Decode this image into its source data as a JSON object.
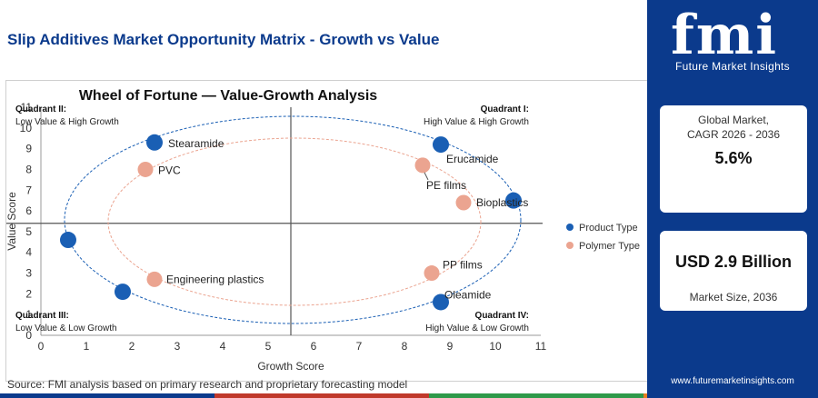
{
  "header": {
    "title": "Slip Additives Market Opportunity Matrix - Growth vs Value"
  },
  "source_note": "Source: FMI analysis based on primary research and proprietary forecasting model",
  "colors": {
    "navy": "#0b3a8c",
    "product": "#1a5fb4",
    "polymer": "#eba490",
    "bar": [
      "#0b3a8c",
      "#c0392b",
      "#2e9a4a",
      "#e67e22"
    ]
  },
  "sidebar": {
    "logo_mark": "fmi",
    "logo_text": "Future Market Insights",
    "cagr_label_line1": "Global Market,",
    "cagr_label_line2": "CAGR 2026 - 2036",
    "cagr_value": "5.6%",
    "size_value": "USD 2.9 Billion",
    "size_label": "Market Size, 2036",
    "website": "www.futuremarketinsights.com"
  },
  "chart_data": {
    "type": "scatter",
    "title": "Wheel of Fortune — Value-Growth Analysis",
    "xlabel": "Growth Score",
    "ylabel": "Value Score",
    "xlim": [
      0,
      11
    ],
    "ylim": [
      0,
      11
    ],
    "xticks": [
      "0",
      "1",
      "2",
      "3",
      "4",
      "5",
      "6",
      "7",
      "8",
      "9",
      "10",
      "11"
    ],
    "yticks": [
      "0",
      "1",
      "2",
      "3",
      "4",
      "5",
      "6",
      "7",
      "8",
      "9",
      "10",
      "11"
    ],
    "divider": {
      "x": 5.5,
      "y": 5.4
    },
    "legend": [
      "Product Type",
      "Polymer Type"
    ],
    "quadrants": [
      {
        "name": "Quadrant II:",
        "desc": "Low Value & High Growth"
      },
      {
        "name": "Quadrant I:",
        "desc": "High Value & High Growth"
      },
      {
        "name": "Quadrant III:",
        "desc": "Low Value & Low Growth"
      },
      {
        "name": "Quadrant IV:",
        "desc": "High Value & Low Growth"
      }
    ],
    "series": [
      {
        "name": "Product Type",
        "points": [
          {
            "label": "Stearamide",
            "x": 2.5,
            "y": 9.3
          },
          {
            "label": "Erucamide",
            "x": 8.8,
            "y": 9.2
          },
          {
            "label": "",
            "x": 10.4,
            "y": 6.5
          },
          {
            "label": "",
            "x": 0.6,
            "y": 4.6
          },
          {
            "label": "",
            "x": 1.8,
            "y": 2.1
          },
          {
            "label": "Oleamide",
            "x": 8.8,
            "y": 1.6
          }
        ]
      },
      {
        "name": "Polymer Type",
        "points": [
          {
            "label": "PVC",
            "x": 2.3,
            "y": 8.0
          },
          {
            "label": "PE films",
            "x": 8.4,
            "y": 8.2
          },
          {
            "label": "Bioplastics",
            "x": 9.3,
            "y": 6.4
          },
          {
            "label": "Engineering plastics",
            "x": 2.5,
            "y": 2.7
          },
          {
            "label": "PP films",
            "x": 8.6,
            "y": 3.0
          }
        ]
      }
    ]
  }
}
